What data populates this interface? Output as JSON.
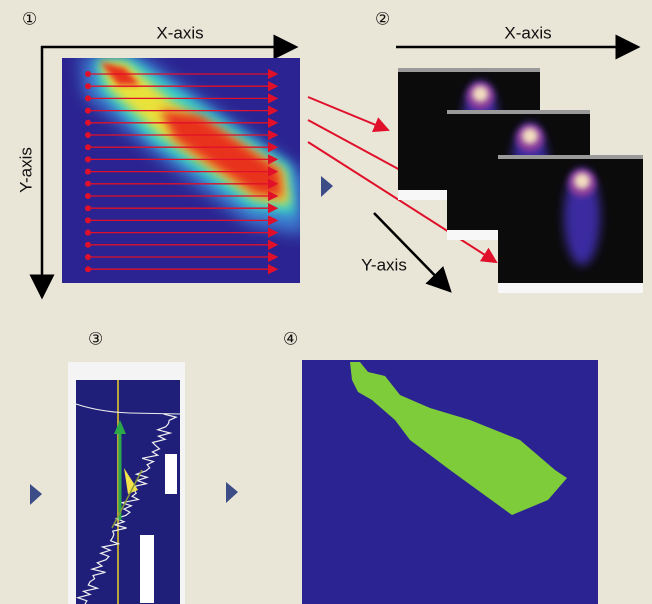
{
  "panels": [
    {
      "number": "①",
      "x_axis": "X-axis",
      "y_axis": "Y-axis"
    },
    {
      "number": "②",
      "x_axis": "X-axis",
      "y_axis": "Y-axis"
    },
    {
      "number": "③"
    },
    {
      "number": "④"
    }
  ]
}
